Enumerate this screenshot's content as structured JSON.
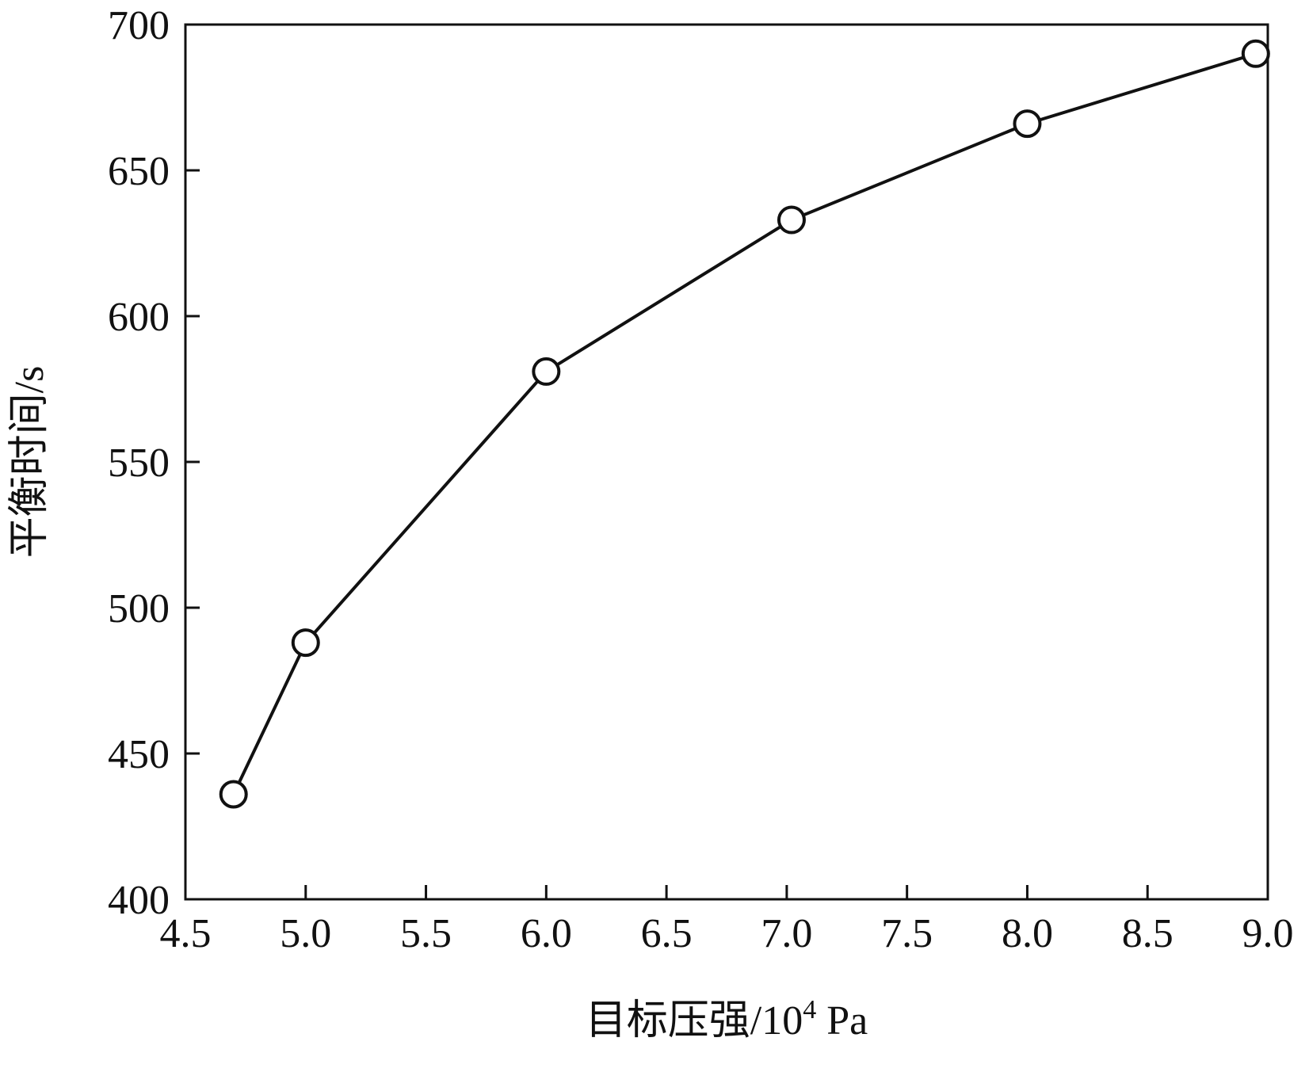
{
  "chart_data": {
    "type": "line",
    "xlabel": "目标压强/10",
    "xlabel_superscript": "4",
    "xlabel_unit": " Pa",
    "ylabel": "平衡时间/s",
    "xlim": [
      4.5,
      9.0
    ],
    "ylim": [
      400,
      700
    ],
    "xticks": [
      4.5,
      5.0,
      5.5,
      6.0,
      6.5,
      7.0,
      7.5,
      8.0,
      8.5,
      9.0
    ],
    "xtick_labels": [
      "4.5",
      "5.0",
      "5.5",
      "6.0",
      "6.5",
      "7.0",
      "7.5",
      "8.0",
      "8.5",
      "9.0"
    ],
    "yticks": [
      400,
      450,
      500,
      550,
      600,
      650,
      700
    ],
    "ytick_labels": [
      "400",
      "450",
      "500",
      "550",
      "600",
      "650",
      "700"
    ],
    "grid": false,
    "marker": "open-circle",
    "line_color": "#111111",
    "series": [
      {
        "x": [
          4.7,
          5.0,
          6.0,
          7.02,
          8.0,
          8.95
        ],
        "values": [
          436,
          488,
          581,
          633,
          666,
          690
        ]
      }
    ]
  }
}
